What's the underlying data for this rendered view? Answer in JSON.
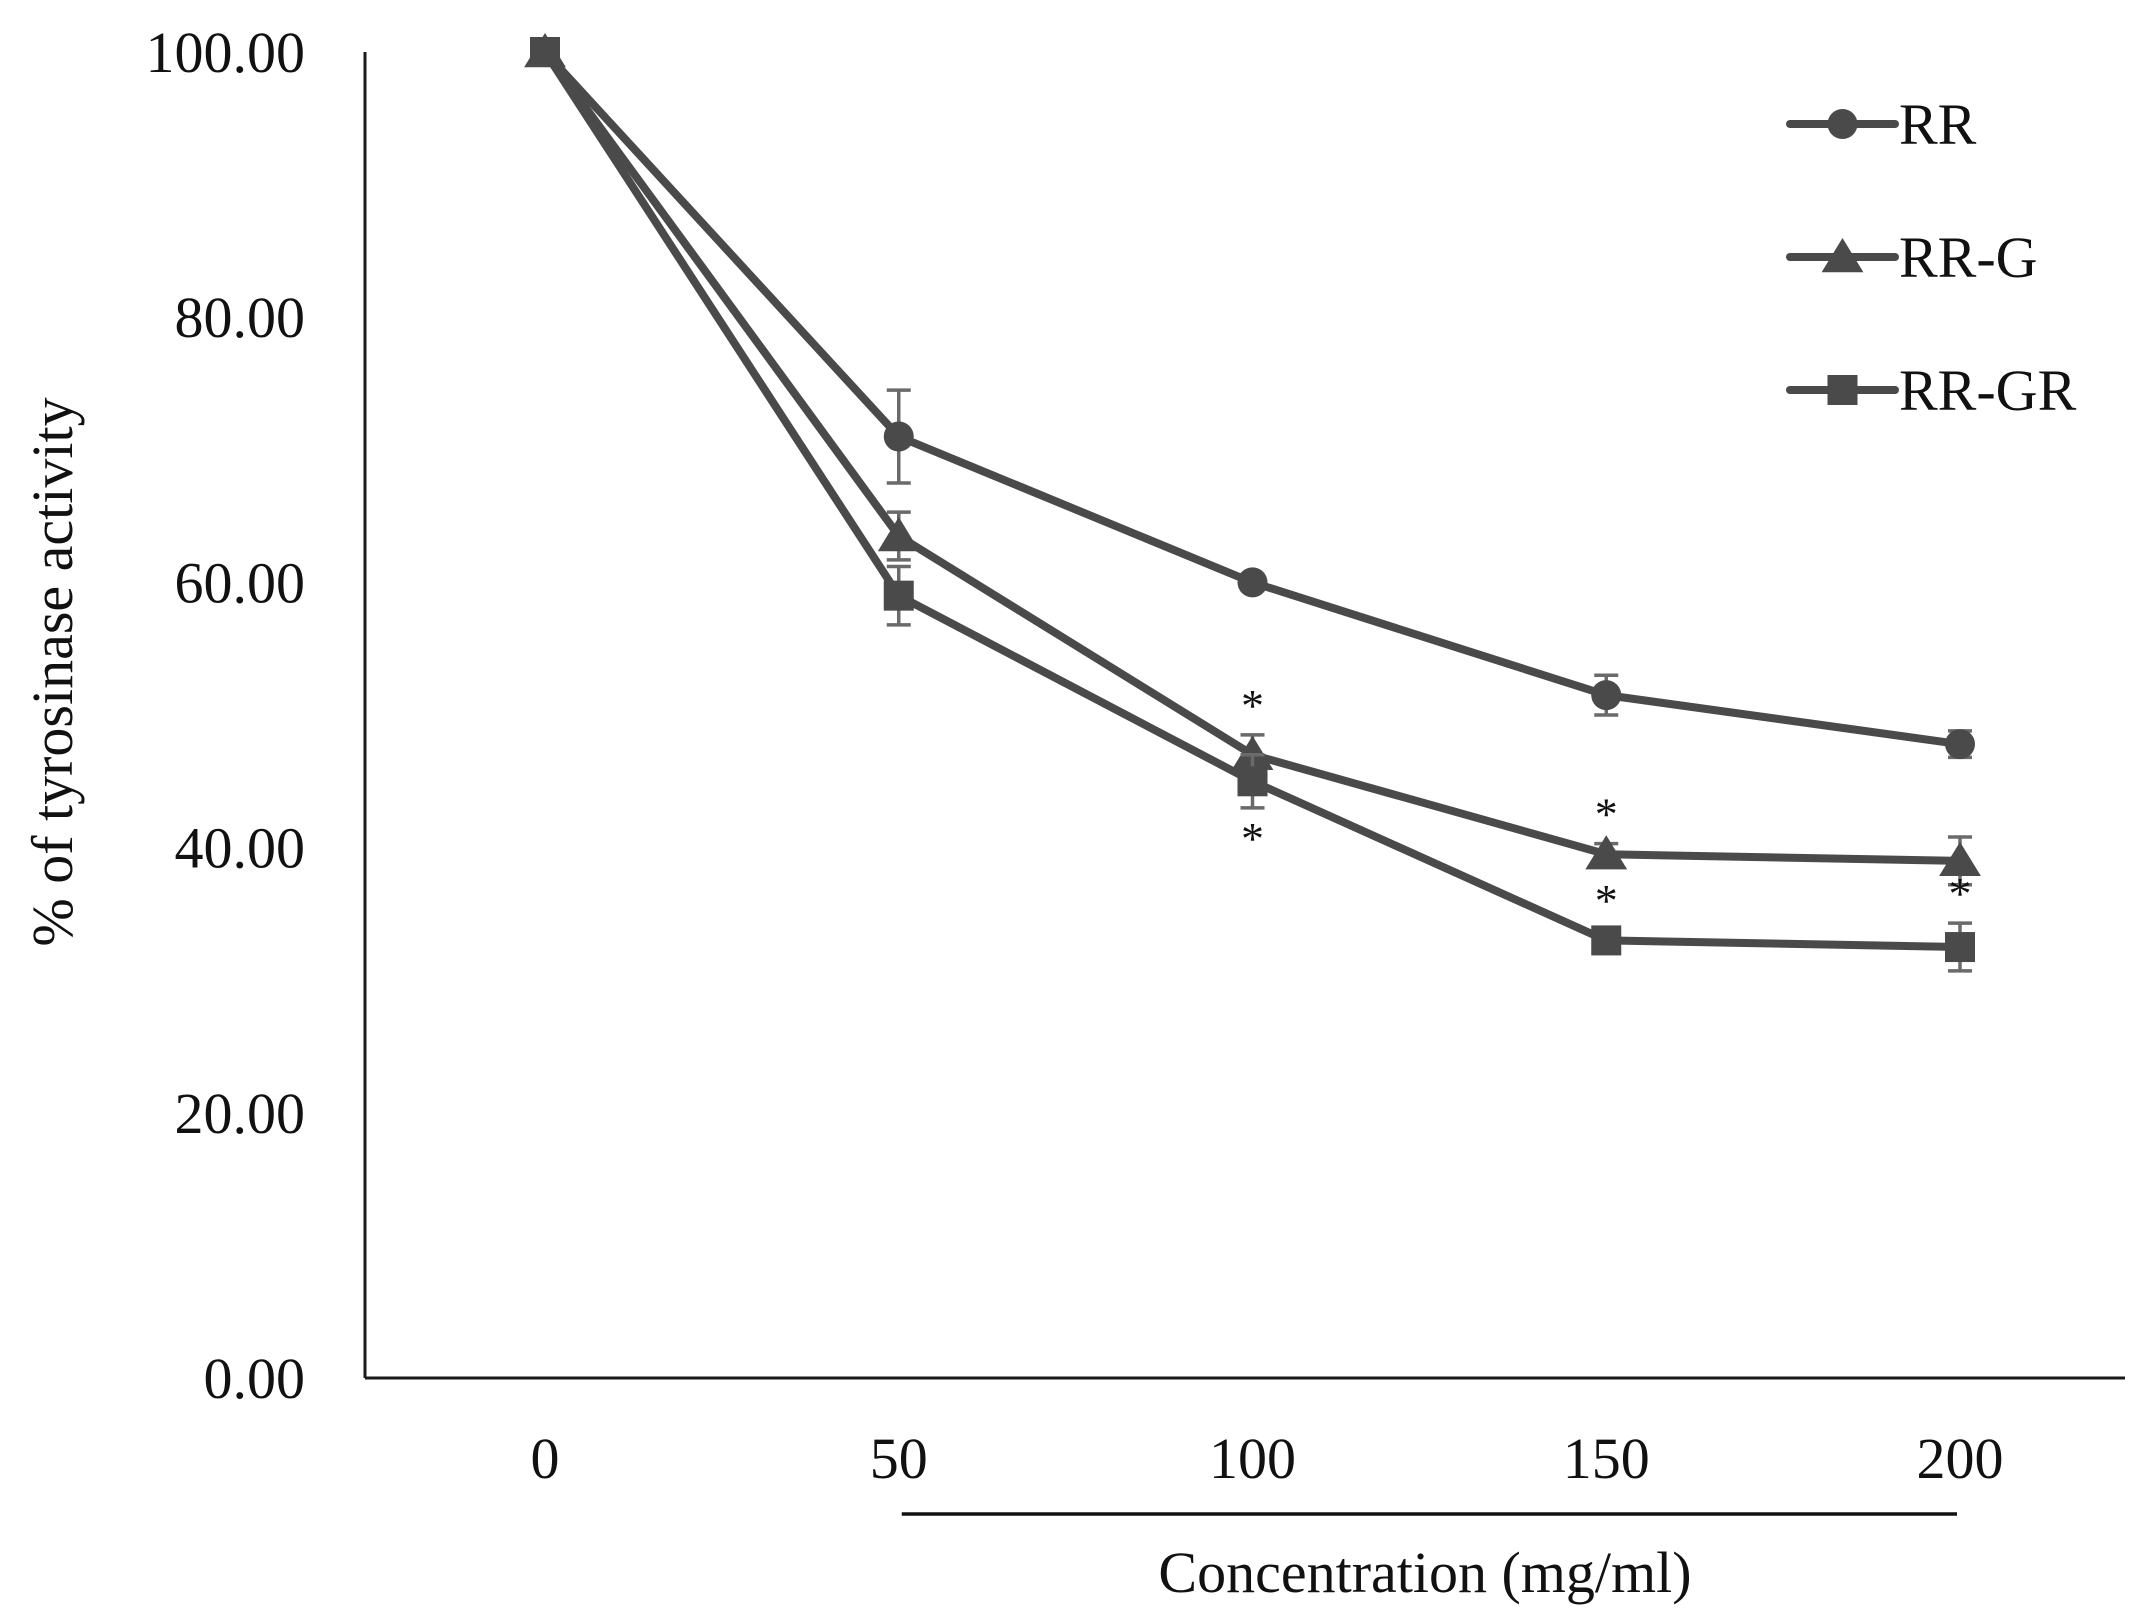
{
  "chart_data": {
    "type": "line",
    "title": "",
    "xlabel": "Concentration (mg/ml)",
    "ylabel": "% of tyrosinase activity",
    "x": [
      0,
      50,
      100,
      150,
      200
    ],
    "x_tick_labels": [
      "0",
      "50",
      "100",
      "150",
      "200"
    ],
    "ylim": [
      0,
      100
    ],
    "y_ticks": [
      0,
      20,
      40,
      60,
      80,
      100
    ],
    "y_tick_labels": [
      "0.00",
      "20.00",
      "40.00",
      "60.00",
      "80.00",
      "100.00"
    ],
    "grid": false,
    "legend_position": "top-right",
    "series": [
      {
        "name": "RR",
        "marker": "circle",
        "color": "#4a4a4a",
        "values": [
          100,
          71,
          60,
          51.5,
          47.8
        ],
        "errors": [
          0,
          3.5,
          0.6,
          1.5,
          1.0
        ]
      },
      {
        "name": "RR-G",
        "marker": "triangle",
        "color": "#4a4a4a",
        "values": [
          100,
          63.5,
          47,
          39.5,
          39
        ],
        "errors": [
          0,
          1.8,
          1.5,
          0.8,
          1.8
        ]
      },
      {
        "name": "RR-GR",
        "marker": "square",
        "color": "#4a4a4a",
        "values": [
          100,
          59,
          45,
          33,
          32.5
        ],
        "errors": [
          0,
          2.2,
          2.0,
          0.8,
          1.8
        ]
      }
    ],
    "annotations": [
      {
        "series": "RR-G",
        "x": 100,
        "text": "*",
        "position": "above"
      },
      {
        "series": "RR-GR",
        "x": 100,
        "text": "*",
        "position": "below"
      },
      {
        "series": "RR-G",
        "x": 150,
        "text": "*",
        "position": "above"
      },
      {
        "series": "RR-GR",
        "x": 150,
        "text": "*",
        "position": "above"
      },
      {
        "series": "RR-GR",
        "x": 200,
        "text": "*",
        "position": "above"
      }
    ],
    "bracket": {
      "from": 50,
      "to": 200
    }
  }
}
